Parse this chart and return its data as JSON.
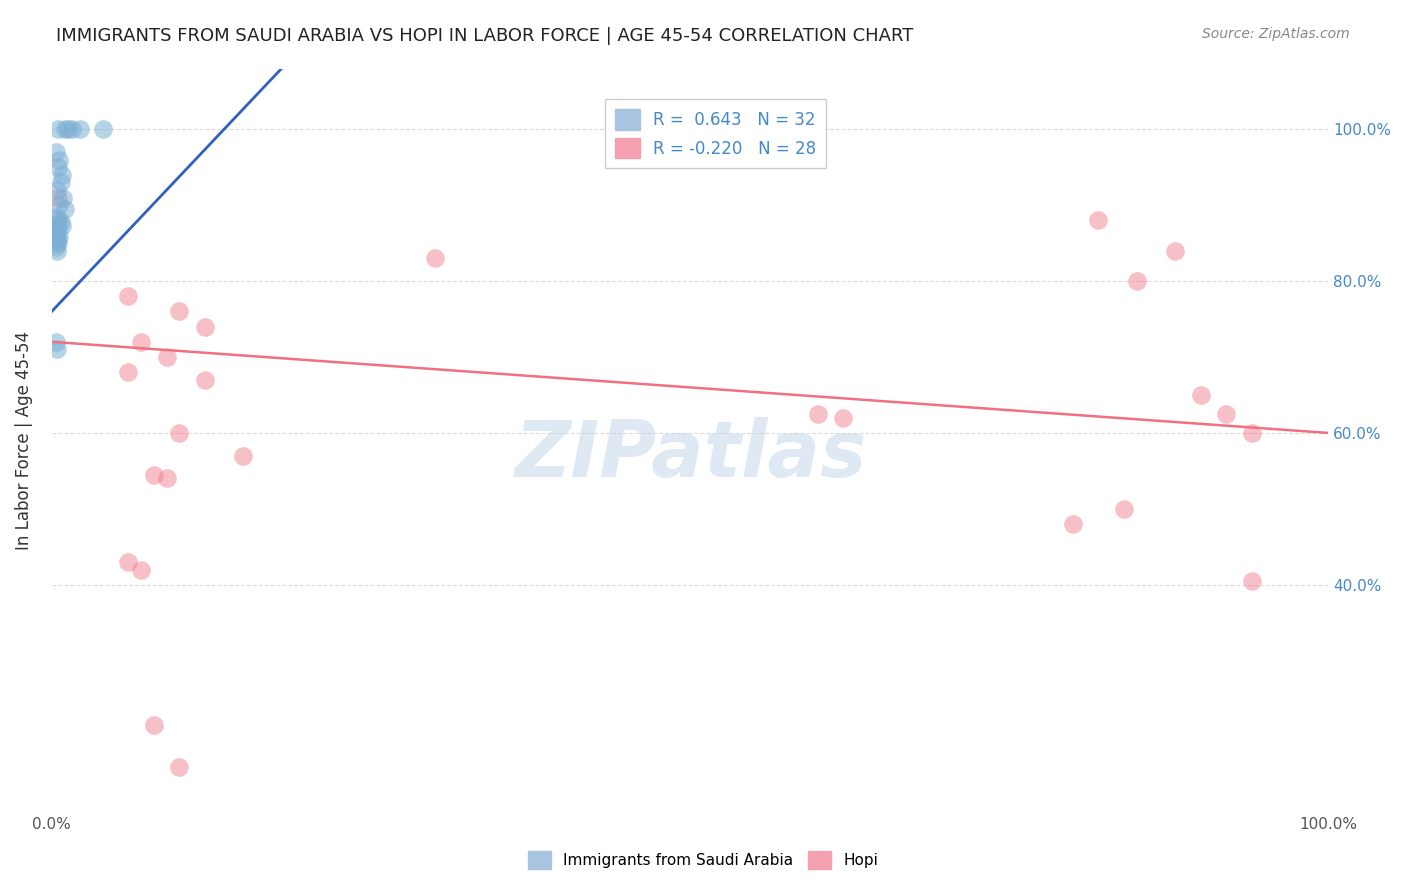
{
  "title": "IMMIGRANTS FROM SAUDI ARABIA VS HOPI IN LABOR FORCE | AGE 45-54 CORRELATION CHART",
  "source": "Source: ZipAtlas.com",
  "ylabel": "In Labor Force | Age 45-54",
  "blue_color": "#7bafd4",
  "pink_color": "#f08090",
  "blue_line_color": "#3060c0",
  "pink_line_color": "#f07080",
  "watermark": "ZIPatlas",
  "saudi_points": [
    [
      0.005,
      1.0
    ],
    [
      0.01,
      1.0
    ],
    [
      0.013,
      1.0
    ],
    [
      0.016,
      1.0
    ],
    [
      0.022,
      1.0
    ],
    [
      0.04,
      1.0
    ],
    [
      0.003,
      0.97
    ],
    [
      0.006,
      0.96
    ],
    [
      0.005,
      0.95
    ],
    [
      0.008,
      0.94
    ],
    [
      0.007,
      0.93
    ],
    [
      0.004,
      0.92
    ],
    [
      0.009,
      0.91
    ],
    [
      0.006,
      0.9
    ],
    [
      0.01,
      0.895
    ],
    [
      0.003,
      0.885
    ],
    [
      0.005,
      0.882
    ],
    [
      0.007,
      0.878
    ],
    [
      0.004,
      0.875
    ],
    [
      0.008,
      0.873
    ],
    [
      0.003,
      0.87
    ],
    [
      0.005,
      0.868
    ],
    [
      0.003,
      0.862
    ],
    [
      0.004,
      0.86
    ],
    [
      0.006,
      0.858
    ],
    [
      0.003,
      0.855
    ],
    [
      0.004,
      0.852
    ],
    [
      0.005,
      0.85
    ],
    [
      0.003,
      0.845
    ],
    [
      0.004,
      0.84
    ],
    [
      0.003,
      0.72
    ],
    [
      0.004,
      0.71
    ]
  ],
  "hopi_points": [
    [
      0.005,
      0.91
    ],
    [
      0.82,
      0.88
    ],
    [
      0.88,
      0.84
    ],
    [
      0.3,
      0.83
    ],
    [
      0.85,
      0.8
    ],
    [
      0.06,
      0.78
    ],
    [
      0.1,
      0.76
    ],
    [
      0.12,
      0.74
    ],
    [
      0.07,
      0.72
    ],
    [
      0.09,
      0.7
    ],
    [
      0.06,
      0.68
    ],
    [
      0.12,
      0.67
    ],
    [
      0.6,
      0.625
    ],
    [
      0.62,
      0.62
    ],
    [
      0.1,
      0.6
    ],
    [
      0.15,
      0.57
    ],
    [
      0.08,
      0.545
    ],
    [
      0.09,
      0.54
    ],
    [
      0.9,
      0.65
    ],
    [
      0.92,
      0.625
    ],
    [
      0.94,
      0.6
    ],
    [
      0.84,
      0.5
    ],
    [
      0.94,
      0.405
    ],
    [
      0.8,
      0.48
    ],
    [
      0.06,
      0.43
    ],
    [
      0.07,
      0.42
    ],
    [
      0.08,
      0.215
    ],
    [
      0.1,
      0.16
    ]
  ],
  "saudi_trend_x": [
    0.0,
    0.18
  ],
  "saudi_trend_y": [
    0.76,
    1.08
  ],
  "hopi_trend_x": [
    0.0,
    1.0
  ],
  "hopi_trend_y": [
    0.72,
    0.6
  ],
  "ytick_positions": [
    0.4,
    0.6,
    0.8,
    1.0
  ],
  "ytick_labels": [
    "40.0%",
    "60.0%",
    "80.0%",
    "100.0%"
  ],
  "xlim": [
    0.0,
    1.0
  ],
  "ylim": [
    0.1,
    1.08
  ],
  "legend_blue_label": "R =  0.643   N = 32",
  "legend_pink_label": "R = -0.220   N = 28",
  "legend_patch_blue": "#a8c4e0",
  "legend_patch_pink": "#f4a0b0",
  "legend_text_color": "#4488cc",
  "bottom_legend_blue": "Immigrants from Saudi Arabia",
  "bottom_legend_pink": "Hopi"
}
